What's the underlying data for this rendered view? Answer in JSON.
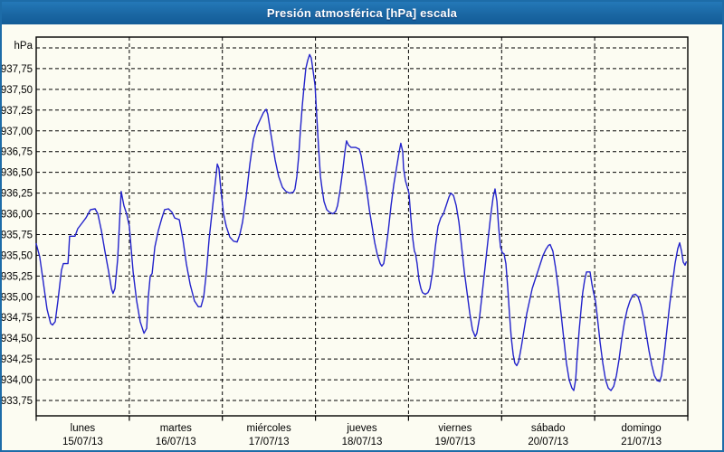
{
  "window": {
    "title": "Presión atmosférica [hPa] escala"
  },
  "colors": {
    "titlebar": "#1d6ca8",
    "window_border": "#1d6ca8",
    "background": "#fcfcf2",
    "grid": "#000000",
    "series_line": "#2323cb",
    "title_text": "#ffffff",
    "axis_text": "#000000"
  },
  "chart_data": {
    "type": "line",
    "title": "Presión atmosférica [hPa] escala",
    "y_unit": "hPa",
    "ylabel": "hPa",
    "xlabel": "",
    "legend": "none",
    "grid_style": "dashed",
    "y_grid_min": 933.75,
    "y_grid_max": 938.0,
    "y_grid_step": 0.25,
    "y_label_max": 937.75,
    "y_tick_labels": [
      "937,75",
      "937,50",
      "937,25",
      "937,00",
      "936,75",
      "936,50",
      "936,25",
      "936,00",
      "935,75",
      "935,50",
      "935,25",
      "935,00",
      "934,75",
      "934,50",
      "934,25",
      "934,00",
      "933,75"
    ],
    "x_range_hours": [
      0,
      168
    ],
    "x_days": [
      {
        "name": "lunes",
        "date": "15/07/13"
      },
      {
        "name": "martes",
        "date": "16/07/13"
      },
      {
        "name": "miércoles",
        "date": "17/07/13"
      },
      {
        "name": "jueves",
        "date": "18/07/13"
      },
      {
        "name": "viernes",
        "date": "19/07/13"
      },
      {
        "name": "sábado",
        "date": "20/07/13"
      },
      {
        "name": "domingo",
        "date": "21/07/13"
      }
    ],
    "series": [
      {
        "name": "Presión atmosférica",
        "unit": "hPa",
        "color": "#2323cb",
        "points_hours_hpa": [
          [
            0,
            935.64
          ],
          [
            0.9,
            935.48
          ],
          [
            1.6,
            935.25
          ],
          [
            2.8,
            934.85
          ],
          [
            3.7,
            934.68
          ],
          [
            4.2,
            934.66
          ],
          [
            4.9,
            934.7
          ],
          [
            5.6,
            934.95
          ],
          [
            6.5,
            935.32
          ],
          [
            7,
            935.4
          ],
          [
            8.2,
            935.4
          ],
          [
            8.4,
            935.55
          ],
          [
            8.6,
            935.73
          ],
          [
            10,
            935.73
          ],
          [
            10.7,
            935.82
          ],
          [
            11.7,
            935.88
          ],
          [
            12.8,
            935.95
          ],
          [
            14,
            936.05
          ],
          [
            15.2,
            936.06
          ],
          [
            15.9,
            936
          ],
          [
            16.8,
            935.8
          ],
          [
            17.7,
            935.55
          ],
          [
            18.7,
            935.3
          ],
          [
            19.4,
            935.1
          ],
          [
            19.8,
            935.04
          ],
          [
            20.3,
            935.1
          ],
          [
            21,
            935.45
          ],
          [
            21.5,
            935.9
          ],
          [
            21.9,
            936.27
          ],
          [
            22.6,
            936.1
          ],
          [
            23.3,
            936
          ],
          [
            24,
            935.85
          ],
          [
            25,
            935.3
          ],
          [
            25.9,
            934.95
          ],
          [
            26.8,
            934.7
          ],
          [
            27.8,
            934.56
          ],
          [
            28.5,
            934.62
          ],
          [
            28.9,
            935
          ],
          [
            29.4,
            935.25
          ],
          [
            29.9,
            935.28
          ],
          [
            30.6,
            935.6
          ],
          [
            31.5,
            935.8
          ],
          [
            32.4,
            935.95
          ],
          [
            33.1,
            936.05
          ],
          [
            34.1,
            936.06
          ],
          [
            35,
            936.02
          ],
          [
            35.7,
            935.95
          ],
          [
            36.9,
            935.93
          ],
          [
            37.8,
            935.7
          ],
          [
            38.7,
            935.4
          ],
          [
            39.7,
            935.15
          ],
          [
            40.8,
            934.95
          ],
          [
            41.8,
            934.88
          ],
          [
            42.5,
            934.88
          ],
          [
            43.2,
            935
          ],
          [
            43.9,
            935.3
          ],
          [
            44.6,
            935.7
          ],
          [
            45.3,
            936
          ],
          [
            46,
            936.3
          ],
          [
            46.7,
            936.6
          ],
          [
            47.1,
            936.55
          ],
          [
            47.6,
            936.3
          ],
          [
            48.3,
            936
          ],
          [
            49,
            935.85
          ],
          [
            49.9,
            935.72
          ],
          [
            50.9,
            935.67
          ],
          [
            51.8,
            935.66
          ],
          [
            52.5,
            935.75
          ],
          [
            53.2,
            935.9
          ],
          [
            54.1,
            936.2
          ],
          [
            55.1,
            936.6
          ],
          [
            56,
            936.9
          ],
          [
            56.9,
            937.05
          ],
          [
            57.9,
            937.15
          ],
          [
            58.6,
            937.22
          ],
          [
            59.3,
            937.26
          ],
          [
            59.7,
            937.2
          ],
          [
            60.2,
            937.05
          ],
          [
            60.9,
            936.85
          ],
          [
            61.6,
            936.65
          ],
          [
            62.5,
            936.45
          ],
          [
            63.5,
            936.32
          ],
          [
            64.4,
            936.27
          ],
          [
            65.3,
            936.25
          ],
          [
            66.3,
            936.26
          ],
          [
            66.7,
            936.3
          ],
          [
            67.2,
            936.45
          ],
          [
            67.7,
            936.7
          ],
          [
            68.1,
            937
          ],
          [
            68.6,
            937.3
          ],
          [
            69.1,
            937.55
          ],
          [
            69.5,
            937.75
          ],
          [
            70,
            937.85
          ],
          [
            70.5,
            937.92
          ],
          [
            70.9,
            937.88
          ],
          [
            71.4,
            937.72
          ],
          [
            71.9,
            937.55
          ],
          [
            72.3,
            937.2
          ],
          [
            72.8,
            936.8
          ],
          [
            73.3,
            936.45
          ],
          [
            73.7,
            936.3
          ],
          [
            74.2,
            936.15
          ],
          [
            74.9,
            936.05
          ],
          [
            75.6,
            936.02
          ],
          [
            76.5,
            936
          ],
          [
            77.2,
            936.03
          ],
          [
            77.7,
            936.1
          ],
          [
            78.4,
            936.3
          ],
          [
            79.1,
            936.55
          ],
          [
            79.6,
            936.75
          ],
          [
            80,
            936.88
          ],
          [
            80.5,
            936.83
          ],
          [
            81.2,
            936.8
          ],
          [
            82.4,
            936.8
          ],
          [
            83.3,
            936.78
          ],
          [
            83.8,
            936.7
          ],
          [
            84.5,
            936.5
          ],
          [
            85.2,
            936.3
          ],
          [
            85.9,
            936.05
          ],
          [
            86.6,
            935.85
          ],
          [
            87.3,
            935.65
          ],
          [
            88,
            935.5
          ],
          [
            88.7,
            935.4
          ],
          [
            89.1,
            935.37
          ],
          [
            89.6,
            935.4
          ],
          [
            90.1,
            935.55
          ],
          [
            90.8,
            935.8
          ],
          [
            91.5,
            936.1
          ],
          [
            92.2,
            936.35
          ],
          [
            92.9,
            936.55
          ],
          [
            93.6,
            936.75
          ],
          [
            94,
            936.85
          ],
          [
            94.5,
            936.75
          ],
          [
            94.7,
            936.55
          ],
          [
            95.2,
            936.4
          ],
          [
            95.7,
            936.32
          ],
          [
            96.1,
            936.25
          ],
          [
            96.6,
            935.95
          ],
          [
            97.1,
            935.7
          ],
          [
            97.5,
            935.55
          ],
          [
            97.8,
            935.52
          ],
          [
            98.2,
            935.4
          ],
          [
            98.7,
            935.2
          ],
          [
            99.2,
            935.1
          ],
          [
            99.6,
            935.05
          ],
          [
            100.3,
            935.03
          ],
          [
            101,
            935.05
          ],
          [
            101.5,
            935.1
          ],
          [
            102.2,
            935.3
          ],
          [
            102.9,
            935.6
          ],
          [
            103.6,
            935.85
          ],
          [
            104.3,
            935.95
          ],
          [
            105,
            936
          ],
          [
            105.7,
            936.1
          ],
          [
            106.4,
            936.2
          ],
          [
            106.9,
            936.25
          ],
          [
            107.6,
            936.22
          ],
          [
            108.3,
            936.1
          ],
          [
            109,
            935.9
          ],
          [
            109.7,
            935.6
          ],
          [
            110.4,
            935.3
          ],
          [
            111.1,
            935.05
          ],
          [
            111.8,
            934.8
          ],
          [
            112.5,
            934.6
          ],
          [
            113.2,
            934.52
          ],
          [
            113.6,
            934.56
          ],
          [
            114.3,
            934.75
          ],
          [
            115,
            935.05
          ],
          [
            115.7,
            935.35
          ],
          [
            116.4,
            935.65
          ],
          [
            117.1,
            935.95
          ],
          [
            117.8,
            936.2
          ],
          [
            118.3,
            936.3
          ],
          [
            118.8,
            936.15
          ],
          [
            119.2,
            935.85
          ],
          [
            119.7,
            935.6
          ],
          [
            120.2,
            935.53
          ],
          [
            120.6,
            935.52
          ],
          [
            121.1,
            935.4
          ],
          [
            121.6,
            935.1
          ],
          [
            122,
            934.8
          ],
          [
            122.5,
            934.5
          ],
          [
            123,
            934.3
          ],
          [
            123.4,
            934.2
          ],
          [
            123.9,
            934.17
          ],
          [
            124.4,
            934.22
          ],
          [
            125.1,
            934.4
          ],
          [
            125.8,
            934.6
          ],
          [
            126.5,
            934.8
          ],
          [
            127.2,
            934.95
          ],
          [
            127.9,
            935.1
          ],
          [
            128.6,
            935.2
          ],
          [
            129.3,
            935.3
          ],
          [
            130,
            935.4
          ],
          [
            130.7,
            935.5
          ],
          [
            131.4,
            935.57
          ],
          [
            132.1,
            935.62
          ],
          [
            132.5,
            935.63
          ],
          [
            133.2,
            935.55
          ],
          [
            133.9,
            935.35
          ],
          [
            134.6,
            935.1
          ],
          [
            135.3,
            934.8
          ],
          [
            136,
            934.5
          ],
          [
            136.7,
            934.2
          ],
          [
            137.4,
            934
          ],
          [
            138.1,
            933.9
          ],
          [
            138.6,
            933.87
          ],
          [
            139.1,
            934
          ],
          [
            139.5,
            934.3
          ],
          [
            140,
            934.6
          ],
          [
            140.5,
            934.85
          ],
          [
            140.9,
            935.05
          ],
          [
            141.4,
            935.2
          ],
          [
            141.9,
            935.3
          ],
          [
            142.8,
            935.3
          ],
          [
            143.3,
            935.15
          ],
          [
            143.7,
            935.05
          ],
          [
            144.2,
            934.95
          ],
          [
            144.7,
            934.75
          ],
          [
            145.4,
            934.45
          ],
          [
            146.1,
            934.2
          ],
          [
            146.8,
            934
          ],
          [
            147.5,
            933.9
          ],
          [
            148.2,
            933.87
          ],
          [
            148.9,
            933.92
          ],
          [
            149.6,
            934.05
          ],
          [
            150.3,
            934.25
          ],
          [
            151,
            934.5
          ],
          [
            151.7,
            934.7
          ],
          [
            152.4,
            934.85
          ],
          [
            153.1,
            934.95
          ],
          [
            153.8,
            935.02
          ],
          [
            154.5,
            935.03
          ],
          [
            155.2,
            935
          ],
          [
            155.9,
            934.9
          ],
          [
            156.6,
            934.75
          ],
          [
            157.3,
            934.55
          ],
          [
            158,
            934.35
          ],
          [
            158.7,
            934.18
          ],
          [
            159.4,
            934.05
          ],
          [
            160.1,
            933.99
          ],
          [
            160.8,
            933.98
          ],
          [
            161.2,
            934.05
          ],
          [
            161.9,
            934.3
          ],
          [
            162.6,
            934.6
          ],
          [
            163.3,
            934.9
          ],
          [
            164,
            935.15
          ],
          [
            164.7,
            935.4
          ],
          [
            165.4,
            935.58
          ],
          [
            165.9,
            935.65
          ],
          [
            166.4,
            935.55
          ],
          [
            166.8,
            935.42
          ],
          [
            167.3,
            935.38
          ],
          [
            167.6,
            935.42
          ]
        ]
      }
    ]
  }
}
